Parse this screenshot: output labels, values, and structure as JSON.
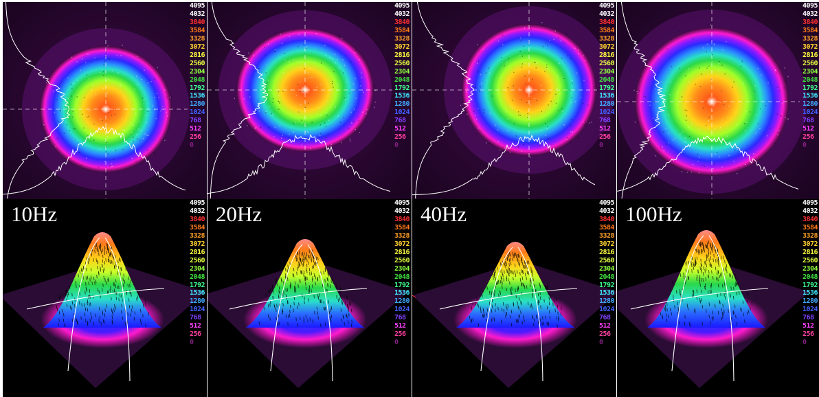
{
  "scale_ticks": [
    "4095",
    "4032",
    "3840",
    "3584",
    "3328",
    "3072",
    "2816",
    "2560",
    "2304",
    "2048",
    "1792",
    "1536",
    "1280",
    "1024",
    "768",
    "512",
    "256",
    "0"
  ],
  "scale_colors": [
    "#ffffff",
    "#ffffff",
    "#ff3030",
    "#ff7a1a",
    "#ffa028",
    "#ffd030",
    "#ffff40",
    "#e6ff40",
    "#90ff40",
    "#40e040",
    "#40ff90",
    "#40e8ff",
    "#40a8ff",
    "#4060ff",
    "#8040ff",
    "#ff40ff",
    "#ff40a0",
    "#802080"
  ],
  "columns": [
    {
      "label": "10Hz"
    },
    {
      "label": "20Hz"
    },
    {
      "label": "40Hz"
    },
    {
      "label": "100Hz"
    }
  ]
}
